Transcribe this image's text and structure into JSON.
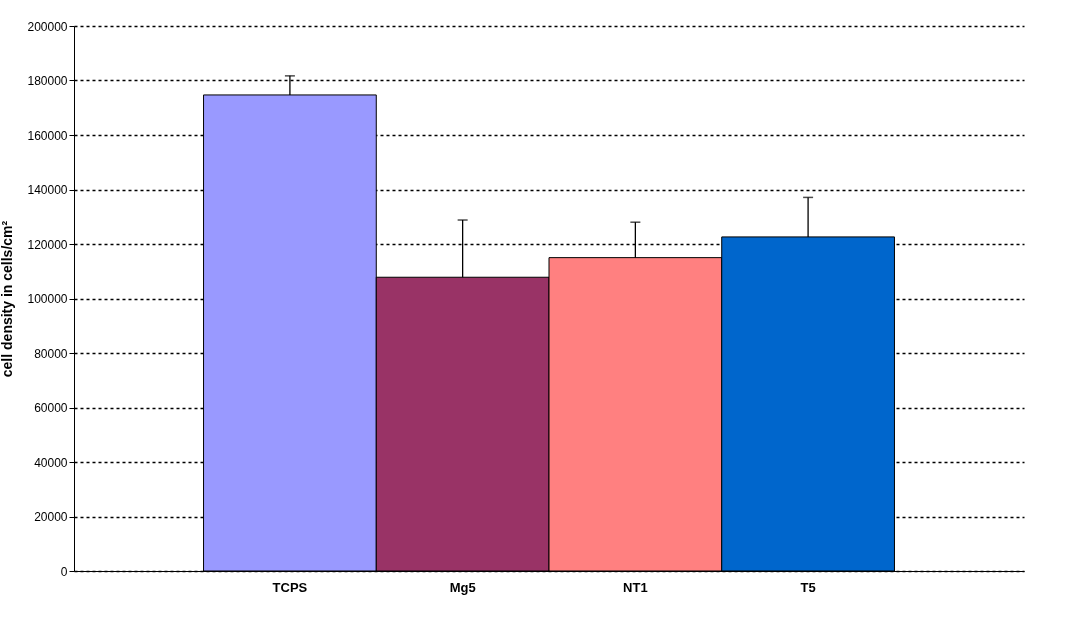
{
  "chart_data": {
    "type": "bar",
    "ylabel": "cell density in cells/cm²",
    "categories": [
      "TCPS",
      "Mg5",
      "NT1",
      "T5"
    ],
    "values": [
      174700,
      107800,
      115000,
      122600
    ],
    "colors": [
      "#9999ff",
      "#993366",
      "#ff8080",
      "#0066cc"
    ],
    "errors": [
      7000,
      21000,
      13000,
      14500
    ],
    "ylim": [
      0,
      200000
    ],
    "yticks": [
      0,
      20000,
      40000,
      60000,
      80000,
      100000,
      120000,
      140000,
      160000,
      180000,
      200000
    ],
    "grid": "y"
  }
}
